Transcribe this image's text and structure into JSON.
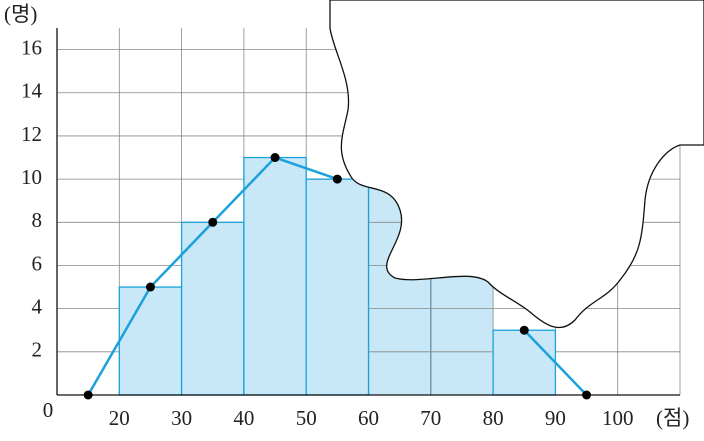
{
  "chart_data": {
    "type": "histogram",
    "y_label": "(명)",
    "x_label": "(점)",
    "origin_label": "0",
    "bins": [
      20,
      30,
      40,
      50,
      60,
      70,
      80,
      90
    ],
    "values": [
      5,
      8,
      11,
      10,
      null,
      null,
      3
    ],
    "color": "#c8e7f7",
    "edge_color": "#1ba1db",
    "polygon": {
      "x": [
        15,
        25,
        35,
        45,
        55,
        65,
        75,
        85,
        95
      ],
      "values": [
        0,
        5,
        8,
        11,
        10,
        null,
        null,
        3,
        0
      ],
      "color": "#1ba1db"
    },
    "xlim": [
      10,
      110
    ],
    "ylim": [
      0,
      17
    ],
    "xticks": [
      20,
      30,
      40,
      50,
      60,
      70,
      80,
      90,
      100
    ],
    "yticks": [
      2,
      4,
      6,
      8,
      10,
      12,
      14,
      16
    ],
    "grid": true
  }
}
